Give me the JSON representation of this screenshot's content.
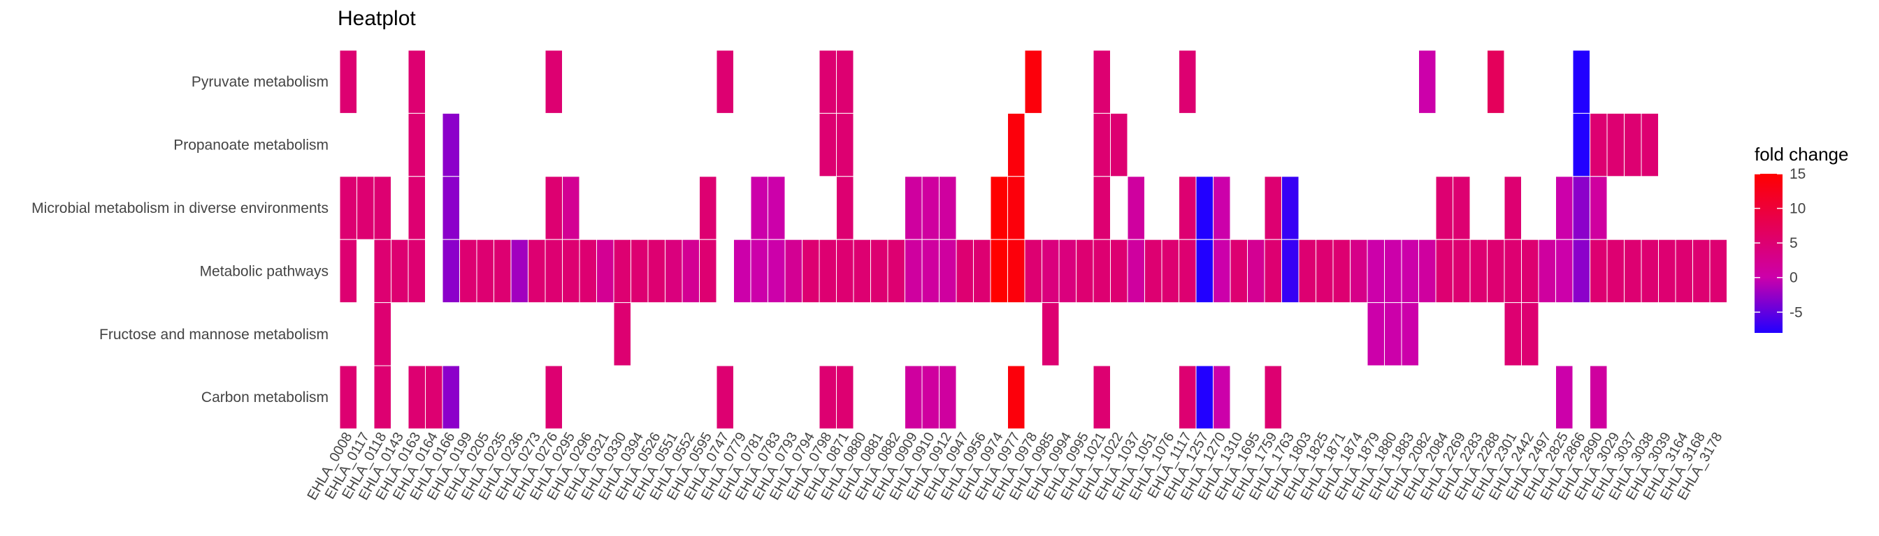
{
  "chart_data": {
    "type": "heatmap",
    "title": "Heatplot",
    "xlabel": "",
    "ylabel": "",
    "legend": {
      "title": "fold change",
      "ticks": [
        15,
        10,
        5,
        0,
        -5
      ],
      "min": -8,
      "max": 15,
      "placement": "right",
      "colors": {
        "low": "#2200ff",
        "mid": "#cc00aa",
        "high": "#ff0000"
      }
    },
    "columns": [
      "EHLA_0008",
      "EHLA_0117",
      "EHLA_0118",
      "EHLA_0143",
      "EHLA_0163",
      "EHLA_0164",
      "EHLA_0166",
      "EHLA_0199",
      "EHLA_0205",
      "EHLA_0235",
      "EHLA_0236",
      "EHLA_0273",
      "EHLA_0276",
      "EHLA_0295",
      "EHLA_0296",
      "EHLA_0321",
      "EHLA_0330",
      "EHLA_0394",
      "EHLA_0526",
      "EHLA_0551",
      "EHLA_0552",
      "EHLA_0595",
      "EHLA_0747",
      "EHLA_0779",
      "EHLA_0781",
      "EHLA_0783",
      "EHLA_0793",
      "EHLA_0794",
      "EHLA_0798",
      "EHLA_0871",
      "EHLA_0880",
      "EHLA_0881",
      "EHLA_0882",
      "EHLA_0909",
      "EHLA_0910",
      "EHLA_0912",
      "EHLA_0947",
      "EHLA_0956",
      "EHLA_0974",
      "EHLA_0977",
      "EHLA_0978",
      "EHLA_0985",
      "EHLA_0994",
      "EHLA_0995",
      "EHLA_1021",
      "EHLA_1022",
      "EHLA_1037",
      "EHLA_1051",
      "EHLA_1076",
      "EHLA_1117",
      "EHLA_1257",
      "EHLA_1270",
      "EHLA_1310",
      "EHLA_1695",
      "EHLA_1759",
      "EHLA_1763",
      "EHLA_1803",
      "EHLA_1825",
      "EHLA_1871",
      "EHLA_1874",
      "EHLA_1879",
      "EHLA_1880",
      "EHLA_1883",
      "EHLA_2082",
      "EHLA_2084",
      "EHLA_2269",
      "EHLA_2283",
      "EHLA_2288",
      "EHLA_2301",
      "EHLA_2442",
      "EHLA_2497",
      "EHLA_2825",
      "EHLA_2866",
      "EHLA_2890",
      "EHLA_3029",
      "EHLA_3037",
      "EHLA_3038",
      "EHLA_3039",
      "EHLA_3164",
      "EHLA_3168",
      "EHLA_3178"
    ],
    "rows": [
      "Pyruvate metabolism",
      "Propanoate metabolism",
      "Microbial metabolism in diverse environments",
      "Metabolic pathways",
      "Fructose and mannose metabolism",
      "Carbon metabolism"
    ],
    "cells": [
      [
        0,
        0,
        5
      ],
      [
        4,
        0,
        5
      ],
      [
        12,
        0,
        5
      ],
      [
        22,
        0,
        5
      ],
      [
        28,
        0,
        5
      ],
      [
        29,
        0,
        5
      ],
      [
        40,
        0,
        14
      ],
      [
        44,
        0,
        5
      ],
      [
        49,
        0,
        5
      ],
      [
        63,
        0,
        0
      ],
      [
        67,
        0,
        7
      ],
      [
        72,
        0,
        -8
      ],
      [
        4,
        1,
        5
      ],
      [
        6,
        1,
        -3
      ],
      [
        28,
        1,
        5
      ],
      [
        29,
        1,
        5
      ],
      [
        39,
        1,
        14
      ],
      [
        44,
        1,
        5
      ],
      [
        45,
        1,
        5
      ],
      [
        72,
        1,
        -8
      ],
      [
        73,
        1,
        5
      ],
      [
        74,
        1,
        5
      ],
      [
        75,
        1,
        5
      ],
      [
        76,
        1,
        5
      ],
      [
        0,
        2,
        5
      ],
      [
        1,
        2,
        5
      ],
      [
        2,
        2,
        5
      ],
      [
        4,
        2,
        5
      ],
      [
        6,
        2,
        -3
      ],
      [
        12,
        2,
        5
      ],
      [
        13,
        2,
        2
      ],
      [
        21,
        2,
        5
      ],
      [
        24,
        2,
        0
      ],
      [
        25,
        2,
        0
      ],
      [
        29,
        2,
        5
      ],
      [
        33,
        2,
        1
      ],
      [
        34,
        2,
        1
      ],
      [
        35,
        2,
        1
      ],
      [
        38,
        2,
        15
      ],
      [
        39,
        2,
        14
      ],
      [
        44,
        2,
        5
      ],
      [
        46,
        2,
        1
      ],
      [
        49,
        2,
        5
      ],
      [
        50,
        2,
        -8
      ],
      [
        51,
        2,
        0
      ],
      [
        54,
        2,
        5
      ],
      [
        55,
        2,
        -7
      ],
      [
        64,
        2,
        5
      ],
      [
        65,
        2,
        5
      ],
      [
        68,
        2,
        5
      ],
      [
        71,
        2,
        0
      ],
      [
        72,
        2,
        -3
      ],
      [
        73,
        2,
        1
      ],
      [
        0,
        3,
        5
      ],
      [
        2,
        3,
        5
      ],
      [
        3,
        3,
        5
      ],
      [
        4,
        3,
        5
      ],
      [
        6,
        3,
        -3
      ],
      [
        7,
        3,
        5
      ],
      [
        8,
        3,
        5
      ],
      [
        9,
        3,
        5
      ],
      [
        10,
        3,
        -2
      ],
      [
        11,
        3,
        5
      ],
      [
        12,
        3,
        5
      ],
      [
        13,
        3,
        5
      ],
      [
        14,
        3,
        5
      ],
      [
        15,
        3,
        2
      ],
      [
        16,
        3,
        5
      ],
      [
        17,
        3,
        5
      ],
      [
        18,
        3,
        5
      ],
      [
        19,
        3,
        4
      ],
      [
        20,
        3,
        2
      ],
      [
        21,
        3,
        5
      ],
      [
        23,
        3,
        0
      ],
      [
        24,
        3,
        0
      ],
      [
        25,
        3,
        0
      ],
      [
        26,
        3,
        2
      ],
      [
        27,
        3,
        5
      ],
      [
        28,
        3,
        5
      ],
      [
        29,
        3,
        5
      ],
      [
        30,
        3,
        5
      ],
      [
        31,
        3,
        5
      ],
      [
        32,
        3,
        5
      ],
      [
        33,
        3,
        1
      ],
      [
        34,
        3,
        1
      ],
      [
        35,
        3,
        1
      ],
      [
        36,
        3,
        5
      ],
      [
        37,
        3,
        5
      ],
      [
        38,
        3,
        15
      ],
      [
        39,
        3,
        14
      ],
      [
        40,
        3,
        5
      ],
      [
        41,
        3,
        4
      ],
      [
        42,
        3,
        4
      ],
      [
        43,
        3,
        5
      ],
      [
        44,
        3,
        5
      ],
      [
        45,
        3,
        5
      ],
      [
        46,
        3,
        1
      ],
      [
        47,
        3,
        5
      ],
      [
        48,
        3,
        5
      ],
      [
        49,
        3,
        5
      ],
      [
        50,
        3,
        -8
      ],
      [
        51,
        3,
        0
      ],
      [
        52,
        3,
        5
      ],
      [
        53,
        3,
        2
      ],
      [
        54,
        3,
        5
      ],
      [
        55,
        3,
        -7
      ],
      [
        56,
        3,
        5
      ],
      [
        57,
        3,
        5
      ],
      [
        58,
        3,
        5
      ],
      [
        59,
        3,
        3
      ],
      [
        60,
        3,
        0
      ],
      [
        61,
        3,
        0
      ],
      [
        62,
        3,
        0
      ],
      [
        63,
        3,
        1
      ],
      [
        64,
        3,
        5
      ],
      [
        65,
        3,
        5
      ],
      [
        66,
        3,
        5
      ],
      [
        67,
        3,
        5
      ],
      [
        68,
        3,
        5
      ],
      [
        69,
        3,
        5
      ],
      [
        70,
        3,
        1
      ],
      [
        71,
        3,
        0
      ],
      [
        72,
        3,
        -3
      ],
      [
        73,
        3,
        5
      ],
      [
        74,
        3,
        5
      ],
      [
        75,
        3,
        5
      ],
      [
        76,
        3,
        5
      ],
      [
        77,
        3,
        5
      ],
      [
        78,
        3,
        5
      ],
      [
        79,
        3,
        5
      ],
      [
        80,
        3,
        5
      ],
      [
        2,
        4,
        5
      ],
      [
        16,
        4,
        5
      ],
      [
        41,
        4,
        5
      ],
      [
        60,
        4,
        0
      ],
      [
        61,
        4,
        0
      ],
      [
        62,
        4,
        0
      ],
      [
        68,
        4,
        5
      ],
      [
        69,
        4,
        5
      ],
      [
        0,
        5,
        5
      ],
      [
        2,
        5,
        5
      ],
      [
        4,
        5,
        5
      ],
      [
        5,
        5,
        5
      ],
      [
        6,
        5,
        -3
      ],
      [
        12,
        5,
        5
      ],
      [
        22,
        5,
        5
      ],
      [
        28,
        5,
        5
      ],
      [
        29,
        5,
        5
      ],
      [
        33,
        5,
        1
      ],
      [
        34,
        5,
        1
      ],
      [
        35,
        5,
        1
      ],
      [
        39,
        5,
        14
      ],
      [
        44,
        5,
        5
      ],
      [
        49,
        5,
        5
      ],
      [
        50,
        5,
        -8
      ],
      [
        51,
        5,
        0
      ],
      [
        54,
        5,
        5
      ],
      [
        71,
        5,
        0
      ],
      [
        73,
        5,
        1
      ]
    ]
  }
}
